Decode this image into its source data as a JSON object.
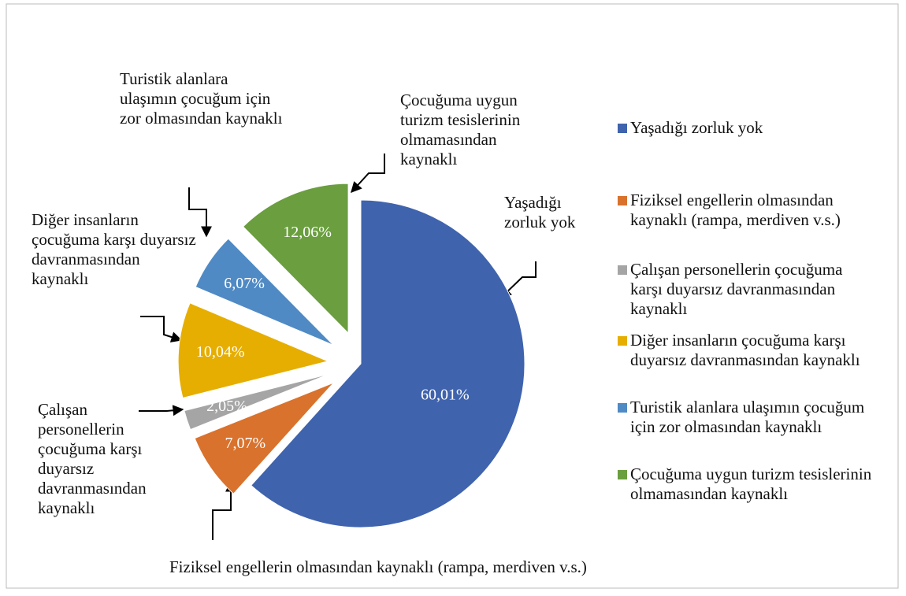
{
  "chart_data": {
    "type": "pie",
    "categories": [
      "Yaşadığı zorluk yok",
      "Fiziksel engellerin olmasından kaynaklı (rampa, merdiven v.s.)",
      "Çalışan personellerin çocuğuma karşı duyarsız davranmasından kaynaklı",
      "Diğer insanların çocuğuma karşı duyarsız davranmasından kaynaklı",
      "Turistik alanlara ulaşımın çocuğum için zor olmasından kaynaklı",
      "Çocuğuma uygun turizm tesislerinin olmamasından kaynaklı"
    ],
    "values": [
      60.01,
      7.07,
      2.05,
      10.04,
      6.07,
      12.06
    ],
    "value_labels": [
      "60,01%",
      "7,07%",
      "2,05%",
      "10,04%",
      "6,07%",
      "12,06%"
    ],
    "colors": [
      "#3f63ad",
      "#d9722d",
      "#a5a5a5",
      "#e6ae00",
      "#4f8ac4",
      "#6a9e3f"
    ],
    "legend": "right"
  }
}
